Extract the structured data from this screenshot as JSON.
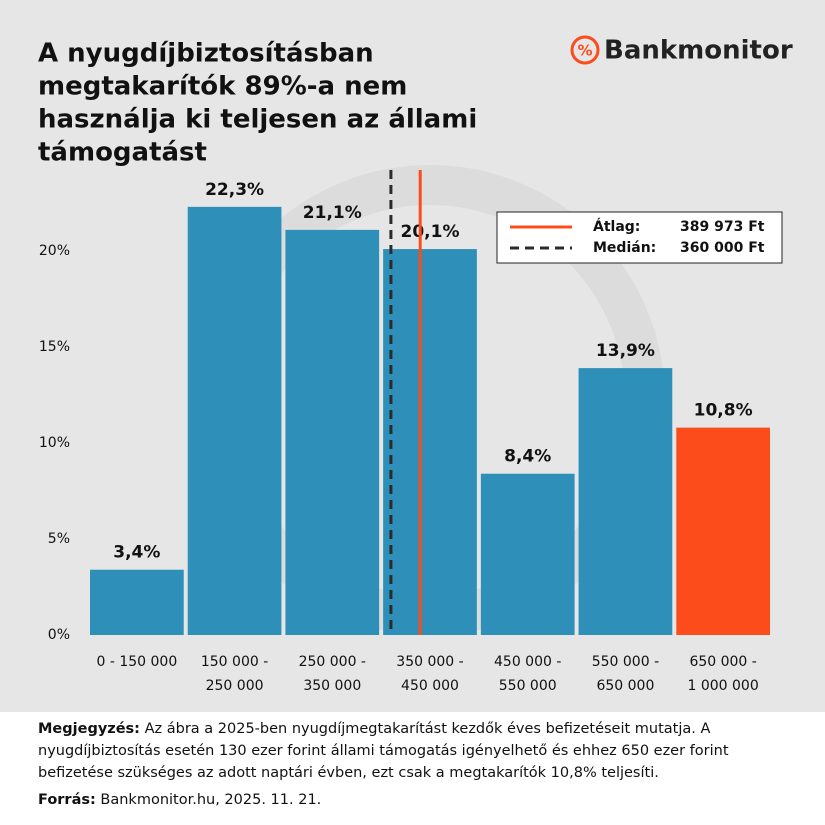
{
  "chart_data": {
    "type": "histogram",
    "title": [
      "A nyugdíjbiztosításban",
      "megtakarítók 89%-a nem",
      "használja ki teljesen az állami",
      "támogatást"
    ],
    "brand_icon": "%",
    "brand": "Bankmonitor",
    "categories": [
      [
        "0 - 150 000"
      ],
      [
        "150 000 -",
        "250 000"
      ],
      [
        "250 000 -",
        "350 000"
      ],
      [
        "350 000 -",
        "450 000"
      ],
      [
        "450 000 -",
        "550 000"
      ],
      [
        "550 000 -",
        "650 000"
      ],
      [
        "650 000 -",
        "1 000 000"
      ]
    ],
    "bins": [
      0,
      150000,
      250000,
      350000,
      450000,
      550000,
      650000,
      1000000
    ],
    "values": [
      3.4,
      22.3,
      21.1,
      20.1,
      8.4,
      13.9,
      10.8
    ],
    "value_labels": [
      "3,4%",
      "22,3%",
      "21,1%",
      "20,1%",
      "8,4%",
      "13,9%",
      "10,8%"
    ],
    "colors": [
      "#2e8fb8",
      "#2e8fb8",
      "#2e8fb8",
      "#2e8fb8",
      "#2e8fb8",
      "#2e8fb8",
      "#fc4c1c"
    ],
    "ylim": [
      0,
      25
    ],
    "yticks": [
      {
        "value": 0,
        "label": "0%"
      },
      {
        "value": 5,
        "label": "5%"
      },
      {
        "value": 10,
        "label": "10%"
      },
      {
        "value": 15,
        "label": "15%"
      },
      {
        "value": 20,
        "label": "20%"
      }
    ],
    "reference_lines": [
      {
        "name": "Átlag:",
        "value": 389973,
        "value_label": "389 973 Ft",
        "color": "#fc4c1c",
        "style": "solid"
      },
      {
        "name": "Medián:",
        "value": 360000,
        "value_label": "360 000 Ft",
        "color": "#2b2b2b",
        "style": "dashed"
      }
    ],
    "note_label": "Megjegyzés:",
    "note": "Az ábra a 2025-ben nyugdíjmegtakarítást kezdők éves befizetéseit mutatja. A nyugdíjbiztosítás esetén 130 ezer forint állami támogatás igényelhető és ehhez 650 ezer forint befizetése szükséges az adott naptári évben, ezt csak a megtakarítók 10,8% teljesíti.",
    "source_label": "Forrás:",
    "source": "Bankmonitor.hu, 2025. 11. 21."
  }
}
